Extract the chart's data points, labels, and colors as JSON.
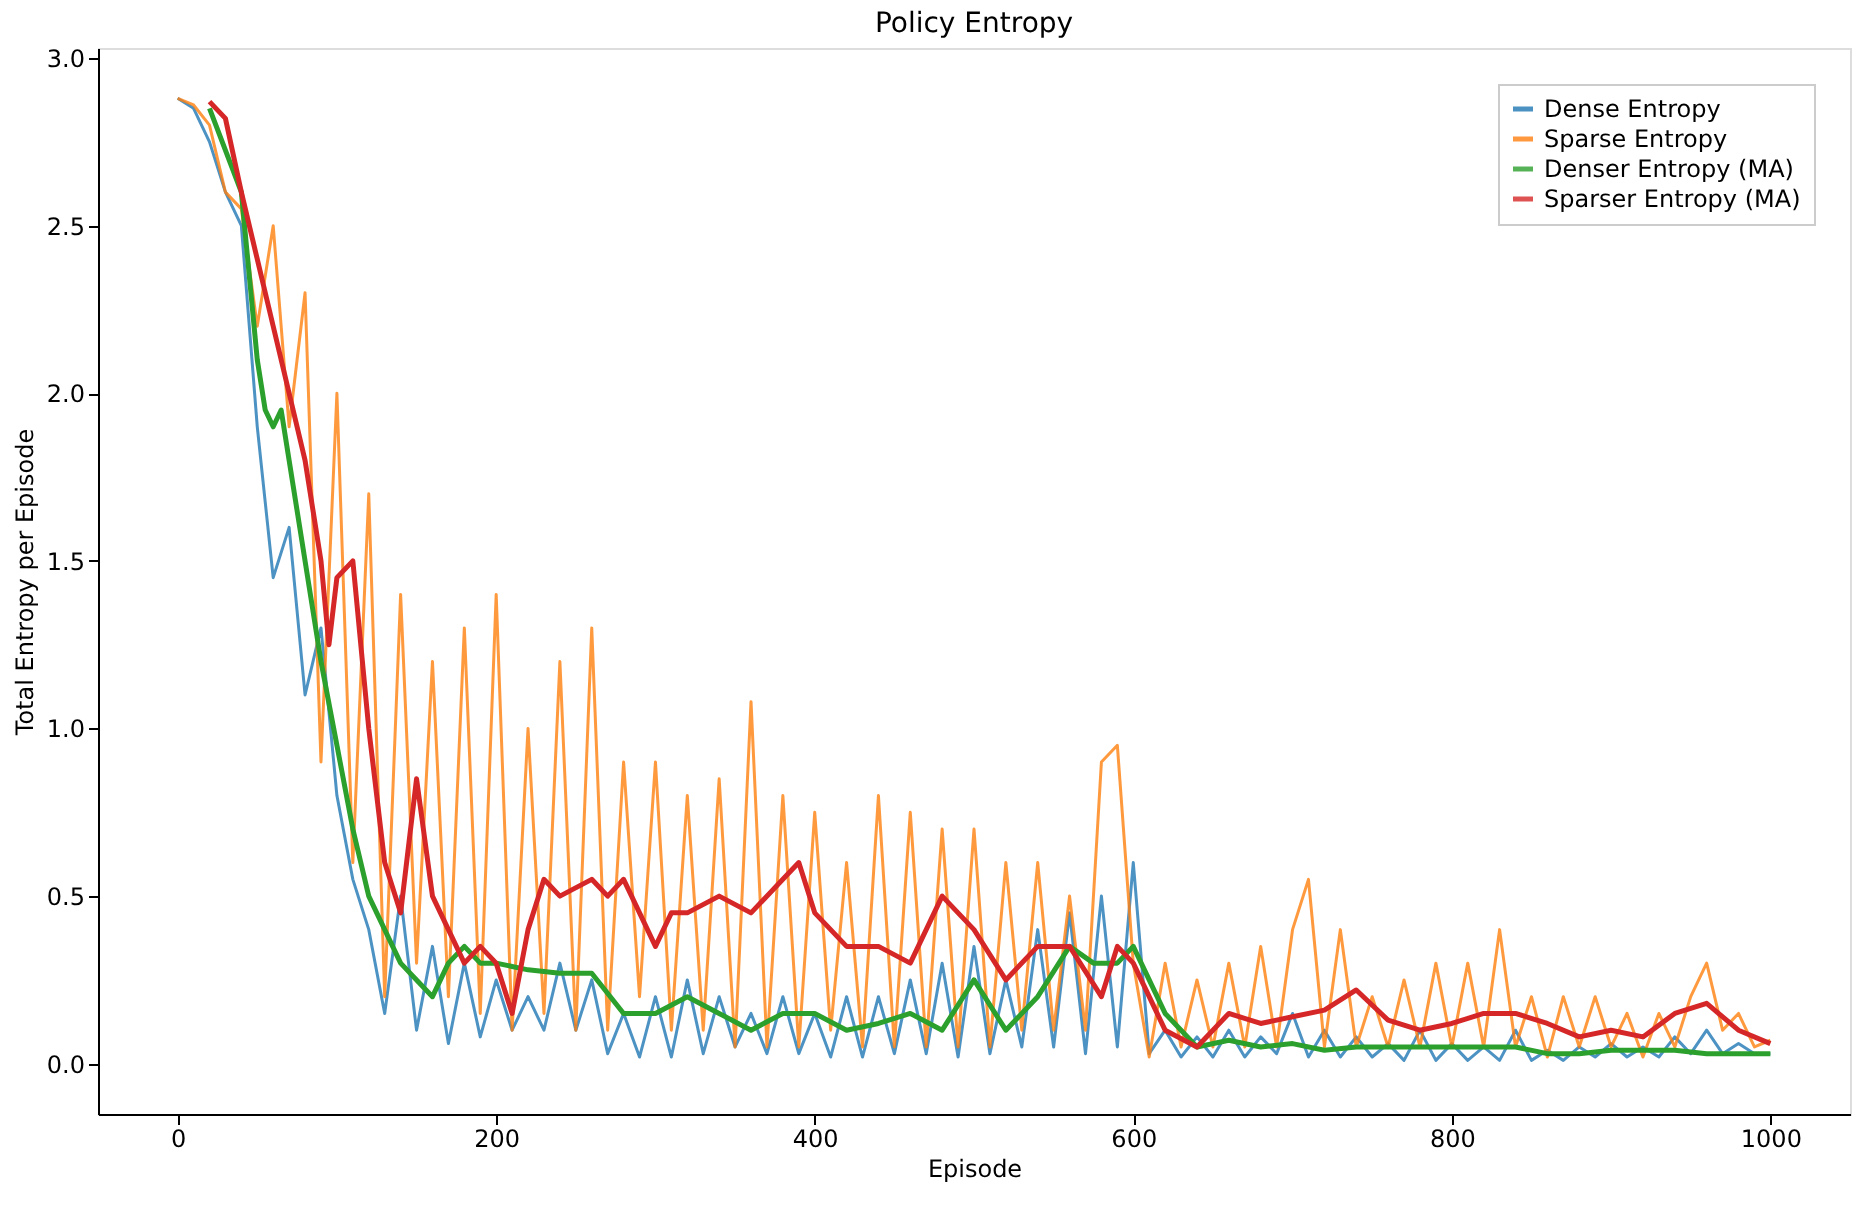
{
  "chart_data": {
    "type": "line",
    "title": "Policy Entropy",
    "xlabel": "Episode",
    "ylabel": "Total Entropy per Episode",
    "xlim": [
      -50,
      1050
    ],
    "xticks": [
      0,
      200,
      400,
      600,
      800,
      1000
    ],
    "ylim": [
      -0.15,
      3.03
    ],
    "yticks": [
      {
        "value": 0,
        "label": "0.0"
      },
      0.5,
      {
        "value": 1,
        "label": "1.0"
      },
      1.5,
      {
        "value": 2,
        "label": "2.0"
      },
      2.5,
      {
        "value": 3,
        "label": "3.0"
      }
    ],
    "grid": false,
    "legend": "top right",
    "line_style": "solid",
    "marker": "none",
    "series": [
      {
        "name": "Dense Entropy",
        "color": "#1f77b4",
        "x": [
          0,
          10,
          20,
          30,
          40,
          50,
          60,
          70,
          80,
          90,
          100,
          110,
          120,
          130,
          140,
          150,
          160,
          170,
          180,
          190,
          200,
          210,
          220,
          230,
          240,
          250,
          260,
          270,
          280,
          290,
          300,
          310,
          320,
          330,
          340,
          350,
          360,
          370,
          380,
          390,
          400,
          410,
          420,
          430,
          440,
          450,
          460,
          470,
          480,
          490,
          500,
          510,
          520,
          530,
          540,
          550,
          560,
          570,
          580,
          590,
          600,
          610,
          620,
          630,
          640,
          650,
          660,
          670,
          680,
          690,
          700,
          710,
          720,
          730,
          740,
          750,
          760,
          770,
          780,
          790,
          800,
          810,
          820,
          830,
          840,
          850,
          860,
          870,
          880,
          890,
          900,
          910,
          920,
          930,
          940,
          950,
          960,
          970,
          980,
          990,
          1000
        ],
        "values": [
          2.88,
          2.85,
          2.75,
          2.6,
          2.5,
          1.9,
          1.45,
          1.6,
          1.1,
          1.3,
          0.8,
          0.55,
          0.4,
          0.15,
          0.5,
          0.1,
          0.35,
          0.06,
          0.3,
          0.08,
          0.25,
          0.1,
          0.2,
          0.1,
          0.3,
          0.1,
          0.25,
          0.03,
          0.15,
          0.02,
          0.2,
          0.02,
          0.25,
          0.03,
          0.2,
          0.05,
          0.15,
          0.03,
          0.2,
          0.03,
          0.15,
          0.02,
          0.2,
          0.02,
          0.2,
          0.03,
          0.25,
          0.03,
          0.3,
          0.02,
          0.35,
          0.03,
          0.25,
          0.05,
          0.4,
          0.05,
          0.45,
          0.03,
          0.5,
          0.05,
          0.6,
          0.03,
          0.1,
          0.02,
          0.08,
          0.02,
          0.1,
          0.02,
          0.08,
          0.03,
          0.15,
          0.02,
          0.1,
          0.02,
          0.08,
          0.02,
          0.06,
          0.01,
          0.1,
          0.01,
          0.06,
          0.01,
          0.05,
          0.01,
          0.1,
          0.01,
          0.04,
          0.01,
          0.05,
          0.02,
          0.06,
          0.02,
          0.05,
          0.02,
          0.08,
          0.03,
          0.1,
          0.03,
          0.06,
          0.03,
          0.03
        ]
      },
      {
        "name": "Sparse Entropy",
        "color": "#ff7f0e",
        "x": [
          0,
          10,
          20,
          30,
          40,
          50,
          60,
          70,
          80,
          90,
          100,
          110,
          120,
          130,
          140,
          150,
          160,
          170,
          180,
          190,
          200,
          210,
          220,
          230,
          240,
          250,
          260,
          270,
          280,
          290,
          300,
          310,
          320,
          330,
          340,
          350,
          360,
          370,
          380,
          390,
          400,
          410,
          420,
          430,
          440,
          450,
          460,
          470,
          480,
          490,
          500,
          510,
          520,
          530,
          540,
          550,
          560,
          570,
          580,
          590,
          600,
          610,
          620,
          630,
          640,
          650,
          660,
          670,
          680,
          690,
          700,
          710,
          720,
          730,
          740,
          750,
          760,
          770,
          780,
          790,
          800,
          810,
          820,
          830,
          840,
          850,
          860,
          870,
          880,
          890,
          900,
          910,
          920,
          930,
          940,
          950,
          960,
          970,
          980,
          990,
          1000
        ],
        "values": [
          2.88,
          2.86,
          2.8,
          2.6,
          2.55,
          2.2,
          2.5,
          1.9,
          2.3,
          0.9,
          2.0,
          0.6,
          1.7,
          0.2,
          1.4,
          0.3,
          1.2,
          0.2,
          1.3,
          0.15,
          1.4,
          0.1,
          1.0,
          0.15,
          1.2,
          0.1,
          1.3,
          0.1,
          0.9,
          0.2,
          0.9,
          0.1,
          0.8,
          0.1,
          0.85,
          0.05,
          1.08,
          0.05,
          0.8,
          0.05,
          0.75,
          0.1,
          0.6,
          0.05,
          0.8,
          0.05,
          0.75,
          0.05,
          0.7,
          0.05,
          0.7,
          0.05,
          0.6,
          0.1,
          0.6,
          0.1,
          0.5,
          0.1,
          0.9,
          0.95,
          0.3,
          0.02,
          0.3,
          0.05,
          0.25,
          0.05,
          0.3,
          0.05,
          0.35,
          0.05,
          0.4,
          0.55,
          0.05,
          0.4,
          0.05,
          0.2,
          0.05,
          0.25,
          0.05,
          0.3,
          0.05,
          0.3,
          0.05,
          0.4,
          0.05,
          0.2,
          0.02,
          0.2,
          0.05,
          0.2,
          0.05,
          0.15,
          0.02,
          0.15,
          0.05,
          0.2,
          0.3,
          0.1,
          0.15,
          0.05,
          0.07
        ]
      },
      {
        "name": "Denser Entropy (MA)",
        "color": "#2ca02c",
        "x": [
          20,
          40,
          50,
          55,
          60,
          65,
          70,
          80,
          90,
          100,
          110,
          120,
          130,
          140,
          150,
          160,
          170,
          180,
          190,
          200,
          220,
          240,
          260,
          280,
          300,
          320,
          340,
          360,
          380,
          400,
          420,
          440,
          460,
          480,
          500,
          520,
          540,
          560,
          575,
          590,
          600,
          620,
          640,
          660,
          680,
          700,
          720,
          740,
          760,
          780,
          800,
          820,
          840,
          860,
          880,
          900,
          920,
          940,
          960,
          980,
          1000
        ],
        "values": [
          2.85,
          2.6,
          2.1,
          1.95,
          1.9,
          1.95,
          1.8,
          1.5,
          1.2,
          0.95,
          0.7,
          0.5,
          0.4,
          0.3,
          0.25,
          0.2,
          0.3,
          0.35,
          0.3,
          0.3,
          0.28,
          0.27,
          0.27,
          0.15,
          0.15,
          0.2,
          0.15,
          0.1,
          0.15,
          0.15,
          0.1,
          0.12,
          0.15,
          0.1,
          0.25,
          0.1,
          0.2,
          0.35,
          0.3,
          0.3,
          0.35,
          0.15,
          0.05,
          0.07,
          0.05,
          0.06,
          0.04,
          0.05,
          0.05,
          0.05,
          0.05,
          0.05,
          0.05,
          0.03,
          0.03,
          0.04,
          0.04,
          0.04,
          0.03,
          0.03,
          0.03
        ]
      },
      {
        "name": "Sparser Entropy (MA)",
        "color": "#d62728",
        "x": [
          20,
          30,
          40,
          50,
          60,
          70,
          80,
          90,
          95,
          100,
          110,
          120,
          130,
          140,
          150,
          160,
          170,
          180,
          190,
          200,
          210,
          220,
          230,
          240,
          260,
          270,
          280,
          290,
          300,
          310,
          320,
          340,
          360,
          380,
          390,
          400,
          420,
          440,
          460,
          480,
          500,
          520,
          540,
          560,
          580,
          590,
          600,
          610,
          620,
          640,
          660,
          680,
          700,
          720,
          740,
          760,
          780,
          800,
          820,
          840,
          860,
          880,
          900,
          920,
          940,
          960,
          980,
          1000
        ],
        "values": [
          2.87,
          2.82,
          2.6,
          2.4,
          2.2,
          2.0,
          1.8,
          1.5,
          1.25,
          1.45,
          1.5,
          1.0,
          0.6,
          0.45,
          0.85,
          0.5,
          0.4,
          0.3,
          0.35,
          0.3,
          0.15,
          0.4,
          0.55,
          0.5,
          0.55,
          0.5,
          0.55,
          0.45,
          0.35,
          0.45,
          0.45,
          0.5,
          0.45,
          0.55,
          0.6,
          0.45,
          0.35,
          0.35,
          0.3,
          0.5,
          0.4,
          0.25,
          0.35,
          0.35,
          0.2,
          0.35,
          0.3,
          0.2,
          0.1,
          0.05,
          0.15,
          0.12,
          0.14,
          0.16,
          0.22,
          0.13,
          0.1,
          0.12,
          0.15,
          0.15,
          0.12,
          0.08,
          0.1,
          0.08,
          0.15,
          0.18,
          0.1,
          0.06
        ]
      }
    ]
  }
}
